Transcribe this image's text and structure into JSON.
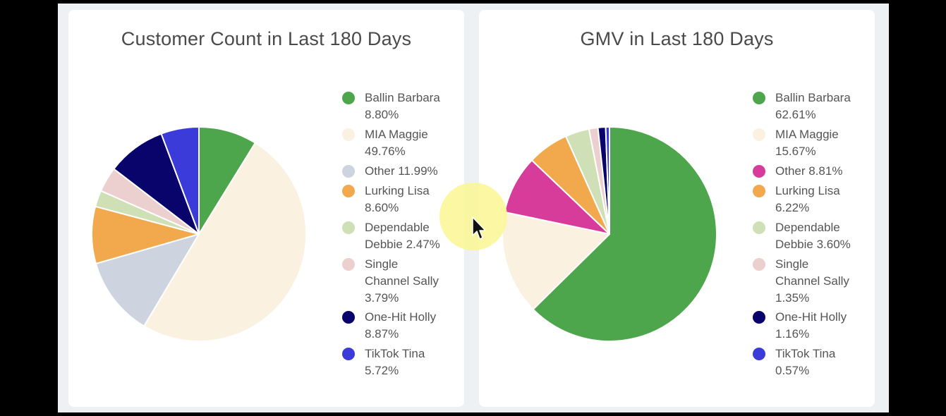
{
  "charts": [
    {
      "title": "Customer Count in Last 180 Days",
      "legend": [
        {
          "lines": [
            "Ballin Barbara",
            "8.80%"
          ],
          "color": "#4ea64c"
        },
        {
          "lines": [
            "MIA Maggie",
            "49.76%"
          ],
          "color": "#faf1e0"
        },
        {
          "lines": [
            "Other 11.99%"
          ],
          "color": "#cdd3df"
        },
        {
          "lines": [
            "Lurking Lisa",
            "8.60%"
          ],
          "color": "#f2a94e"
        },
        {
          "lines": [
            "Dependable",
            "Debbie 2.47%"
          ],
          "color": "#cfe0b7"
        },
        {
          "lines": [
            "Single",
            "Channel Sally",
            "3.79%"
          ],
          "color": "#eccfcf"
        },
        {
          "lines": [
            "One-Hit Holly",
            "8.87%"
          ],
          "color": "#08046b"
        },
        {
          "lines": [
            "TikTok Tina",
            "5.72%"
          ],
          "color": "#3a3bd8"
        }
      ]
    },
    {
      "title": "GMV in Last 180 Days",
      "legend": [
        {
          "lines": [
            "Ballin Barbara",
            "62.61%"
          ],
          "color": "#4ea64c"
        },
        {
          "lines": [
            "MIA Maggie",
            "15.67%"
          ],
          "color": "#faf1e0"
        },
        {
          "lines": [
            "Other 8.81%"
          ],
          "color": "#d83c9b"
        },
        {
          "lines": [
            "Lurking Lisa",
            "6.22%"
          ],
          "color": "#f2a94e"
        },
        {
          "lines": [
            "Dependable",
            "Debbie 3.60%"
          ],
          "color": "#cfe0b7"
        },
        {
          "lines": [
            "Single",
            "Channel Sally",
            "1.35%"
          ],
          "color": "#eccfcf"
        },
        {
          "lines": [
            "One-Hit Holly",
            "1.16%"
          ],
          "color": "#08046b"
        },
        {
          "lines": [
            "TikTok Tina",
            "0.57%"
          ],
          "color": "#3a3bd8"
        }
      ]
    }
  ],
  "chart_data": [
    {
      "type": "pie",
      "title": "Customer Count in Last 180 Days",
      "legend_position": "right",
      "slices": [
        {
          "label": "Ballin Barbara",
          "value": 8.8,
          "color": "#4ea64c"
        },
        {
          "label": "MIA Maggie",
          "value": 49.76,
          "color": "#faf1e0"
        },
        {
          "label": "Other",
          "value": 11.99,
          "color": "#cdd3df"
        },
        {
          "label": "Lurking Lisa",
          "value": 8.6,
          "color": "#f2a94e"
        },
        {
          "label": "Dependable Debbie",
          "value": 2.47,
          "color": "#cfe0b7"
        },
        {
          "label": "Single Channel Sally",
          "value": 3.79,
          "color": "#eccfcf"
        },
        {
          "label": "One-Hit Holly",
          "value": 8.87,
          "color": "#08046b"
        },
        {
          "label": "TikTok Tina",
          "value": 5.72,
          "color": "#3a3bd8"
        }
      ]
    },
    {
      "type": "pie",
      "title": "GMV in Last 180 Days",
      "legend_position": "right",
      "slices": [
        {
          "label": "Ballin Barbara",
          "value": 62.61,
          "color": "#4ea64c"
        },
        {
          "label": "MIA Maggie",
          "value": 15.67,
          "color": "#faf1e0"
        },
        {
          "label": "Other",
          "value": 8.81,
          "color": "#d83c9b"
        },
        {
          "label": "Lurking Lisa",
          "value": 6.22,
          "color": "#f2a94e"
        },
        {
          "label": "Dependable Debbie",
          "value": 3.6,
          "color": "#cfe0b7"
        },
        {
          "label": "Single Channel Sally",
          "value": 1.35,
          "color": "#eccfcf"
        },
        {
          "label": "One-Hit Holly",
          "value": 1.16,
          "color": "#08046b"
        },
        {
          "label": "TikTok Tina",
          "value": 0.57,
          "color": "#3a3bd8"
        }
      ]
    }
  ]
}
